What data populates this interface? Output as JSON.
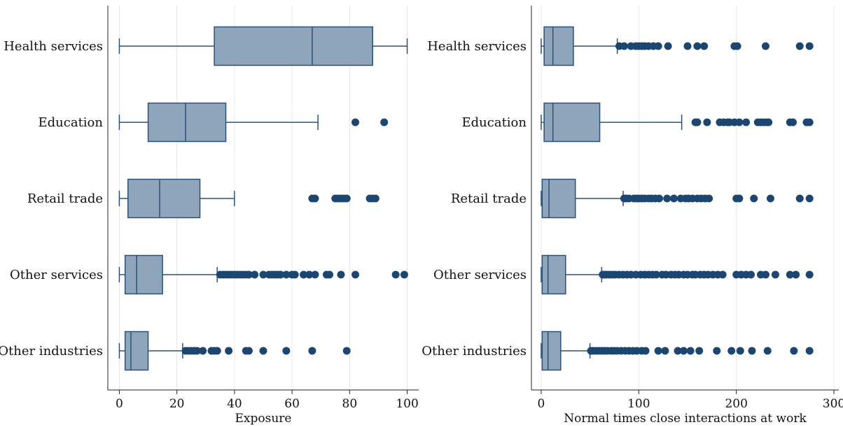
{
  "colors": {
    "box_fill": "#8fa5bb",
    "box_stroke": "#2b5276",
    "outlier": "#1c4670",
    "grid": "#e4e9ef",
    "axis": "#222222"
  },
  "chart_data": [
    {
      "type": "box",
      "title": "",
      "xlabel": "Exposure",
      "ylabel": "",
      "xlim": [
        -4,
        104
      ],
      "xticks": [
        0,
        20,
        40,
        60,
        80,
        100
      ],
      "grid": true,
      "categories": [
        "Health services",
        "Education",
        "Retail trade",
        "Other services",
        "Other industries"
      ],
      "boxes": [
        {
          "whisker_low": 0,
          "q1": 33,
          "median": 67,
          "q3": 88,
          "whisker_high": 100,
          "outliers": []
        },
        {
          "whisker_low": 0,
          "q1": 10,
          "median": 23,
          "q3": 37,
          "whisker_high": 69,
          "outliers": [
            82,
            92
          ]
        },
        {
          "whisker_low": 0,
          "q1": 3,
          "median": 14,
          "q3": 28,
          "whisker_high": 40,
          "outliers": [
            67,
            68,
            75,
            76,
            77,
            78,
            79,
            87,
            88,
            89
          ]
        },
        {
          "whisker_low": 0,
          "q1": 2,
          "median": 6,
          "q3": 15,
          "whisker_high": 34,
          "outliers": [
            35,
            36,
            37,
            38,
            39,
            40,
            41,
            42,
            43,
            44,
            45,
            47,
            50,
            52,
            53,
            54,
            55,
            56,
            58,
            60,
            61,
            64,
            66,
            68,
            72,
            73,
            77,
            82,
            96,
            99
          ]
        },
        {
          "whisker_low": 0,
          "q1": 2,
          "median": 4,
          "q3": 10,
          "whisker_high": 22,
          "outliers": [
            23,
            24,
            25,
            26,
            27,
            29,
            32,
            33,
            34,
            38,
            44,
            45,
            50,
            58,
            67,
            79
          ]
        }
      ]
    },
    {
      "type": "box",
      "title": "",
      "xlabel": "Normal times close interactions at work",
      "ylabel": "",
      "xlim": [
        -10,
        305
      ],
      "xticks": [
        0,
        100,
        200,
        300
      ],
      "grid": true,
      "categories": [
        "Health services",
        "Education",
        "Retail trade",
        "Other services",
        "Other industries"
      ],
      "boxes": [
        {
          "whisker_low": 0,
          "q1": 3,
          "median": 12,
          "q3": 33,
          "whisker_high": 78,
          "outliers": [
            80,
            85,
            92,
            97,
            100,
            103,
            106,
            110,
            115,
            120,
            130,
            150,
            160,
            167,
            198,
            201,
            230,
            265,
            275
          ]
        },
        {
          "whisker_low": 0,
          "q1": 3,
          "median": 12,
          "q3": 60,
          "whisker_high": 144,
          "outliers": [
            158,
            160,
            170,
            183,
            187,
            191,
            193,
            198,
            203,
            210,
            222,
            225,
            228,
            231,
            233,
            255,
            258,
            272,
            275
          ]
        },
        {
          "whisker_low": 0,
          "q1": 1,
          "median": 8,
          "q3": 35,
          "whisker_high": 84,
          "outliers": [
            85,
            87,
            90,
            95,
            98,
            100,
            103,
            106,
            110,
            113,
            117,
            121,
            129,
            136,
            143,
            148,
            151,
            155,
            160,
            164,
            168,
            172,
            200,
            203,
            218,
            235,
            265,
            275
          ]
        },
        {
          "whisker_low": 0,
          "q1": 1,
          "median": 7,
          "q3": 25,
          "whisker_high": 62,
          "outliers": [
            63,
            65,
            67,
            70,
            73,
            76,
            80,
            84,
            88,
            92,
            97,
            102,
            106,
            110,
            114,
            118,
            124,
            128,
            133,
            137,
            141,
            146,
            150,
            155,
            158,
            163,
            167,
            171,
            176,
            181,
            186,
            200,
            205,
            210,
            215,
            225,
            230,
            240,
            255,
            261,
            275
          ]
        },
        {
          "whisker_low": 0,
          "q1": 1,
          "median": 7,
          "q3": 20,
          "whisker_high": 50,
          "outliers": [
            51,
            53,
            56,
            59,
            62,
            65,
            68,
            72,
            75,
            78,
            82,
            86,
            90,
            94,
            98,
            103,
            107,
            120,
            127,
            140,
            146,
            153,
            162,
            180,
            195,
            204,
            216,
            232,
            259,
            275
          ]
        }
      ]
    }
  ]
}
